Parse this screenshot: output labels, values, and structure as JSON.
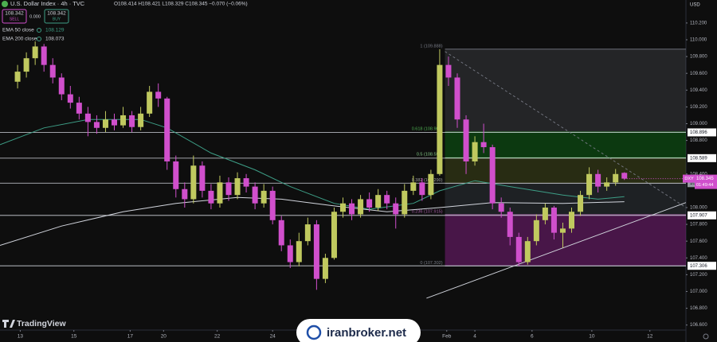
{
  "header": {
    "symbol_title": "U.S. Dollar Index · 4h · TVC",
    "ohlc": "O108.414 H108.421 L108.329 C108.345 −0.070 (−0.06%)",
    "sell_price": 108.342,
    "sell_label": "SELL",
    "spread": "0.000",
    "buy_price": 108.342,
    "buy_label": "BUY"
  },
  "indicators": [
    {
      "label": "EMA 50 close",
      "value": 108.129,
      "color": "#3d9e86"
    },
    {
      "label": "EMA 200 close",
      "value": 108.073,
      "color": "#d1d4dc"
    }
  ],
  "branding": {
    "logo": "TradingView",
    "watermark": "iranbroker.net"
  },
  "chart_data": {
    "type": "candlestick",
    "currency": "USD",
    "up_color": "#c0c95f",
    "down_color": "#d04fcc",
    "xlim": [
      -2,
      76
    ],
    "ylim": [
      106.54,
      110.474
    ],
    "xticks": [
      {
        "value": 0.3,
        "label": "13"
      },
      {
        "value": 6.4,
        "label": "15"
      },
      {
        "value": 12.8,
        "label": "17"
      },
      {
        "value": 16.6,
        "label": "20"
      },
      {
        "value": 22.7,
        "label": "22"
      },
      {
        "value": 29,
        "label": "24"
      },
      {
        "value": 48.8,
        "label": "Feb"
      },
      {
        "value": 52,
        "label": "4"
      },
      {
        "value": 58.5,
        "label": "6"
      },
      {
        "value": 65.3,
        "label": "10"
      },
      {
        "value": 71.9,
        "label": "12"
      }
    ],
    "yticks": [
      {
        "value": 110.2,
        "label": "110.200"
      },
      {
        "value": 110,
        "label": "110.000"
      },
      {
        "value": 109.8,
        "label": "109.800"
      },
      {
        "value": 109.6,
        "label": "109.600"
      },
      {
        "value": 109.4,
        "label": "109.400"
      },
      {
        "value": 109.2,
        "label": "109.200"
      },
      {
        "value": 109,
        "label": "109.000"
      },
      {
        "value": 108.8,
        "label": "108.800"
      },
      {
        "value": 108.4,
        "label": "108.400"
      },
      {
        "value": 108,
        "label": "108.000"
      },
      {
        "value": 107.8,
        "label": "107.800"
      },
      {
        "value": 107.6,
        "label": "107.600"
      },
      {
        "value": 107.4,
        "label": "107.400"
      },
      {
        "value": 107.2,
        "label": "107.200"
      },
      {
        "value": 107,
        "label": "107.000"
      },
      {
        "value": 106.8,
        "label": "106.800"
      },
      {
        "value": 106.6,
        "label": "106.600"
      }
    ],
    "ohlc": [
      [
        109.5,
        109.7,
        109.42,
        109.62
      ],
      [
        109.62,
        109.85,
        109.55,
        109.78
      ],
      [
        109.78,
        109.98,
        109.7,
        109.92
      ],
      [
        109.92,
        109.95,
        109.62,
        109.7
      ],
      [
        109.7,
        109.78,
        109.48,
        109.55
      ],
      [
        109.55,
        109.6,
        109.28,
        109.35
      ],
      [
        109.35,
        109.45,
        109.18,
        109.25
      ],
      [
        109.25,
        109.32,
        109.05,
        109.12
      ],
      [
        109.12,
        109.2,
        108.85,
        109.02
      ],
      [
        109.02,
        109.1,
        108.88,
        108.95
      ],
      [
        108.95,
        109.15,
        108.9,
        109.05
      ],
      [
        109.05,
        109.12,
        108.92,
        108.98
      ],
      [
        108.98,
        109.2,
        108.95,
        109.1
      ],
      [
        109.1,
        109.15,
        108.9,
        108.96
      ],
      [
        108.96,
        109.2,
        108.92,
        109.12
      ],
      [
        109.12,
        109.45,
        109.08,
        109.38
      ],
      [
        109.38,
        109.48,
        109.2,
        109.3
      ],
      [
        109.3,
        109.32,
        108.45,
        108.55
      ],
      [
        108.55,
        108.62,
        108.12,
        108.22
      ],
      [
        108.22,
        108.3,
        108.0,
        108.1
      ],
      [
        108.1,
        108.62,
        108.05,
        108.5
      ],
      [
        108.5,
        108.55,
        108.12,
        108.2
      ],
      [
        108.2,
        108.28,
        107.98,
        108.05
      ],
      [
        108.05,
        108.38,
        108.0,
        108.3
      ],
      [
        108.3,
        108.36,
        108.08,
        108.15
      ],
      [
        108.15,
        108.42,
        108.1,
        108.35
      ],
      [
        108.35,
        108.4,
        108.18,
        108.25
      ],
      [
        108.25,
        108.3,
        107.98,
        108.05
      ],
      [
        108.05,
        108.28,
        108.0,
        108.2
      ],
      [
        108.2,
        108.25,
        107.8,
        107.85
      ],
      [
        107.85,
        107.9,
        107.48,
        107.55
      ],
      [
        107.55,
        107.62,
        107.28,
        107.35
      ],
      [
        107.35,
        107.7,
        107.3,
        107.6
      ],
      [
        107.6,
        107.88,
        107.55,
        107.8
      ],
      [
        107.8,
        107.85,
        107.02,
        107.15
      ],
      [
        107.15,
        107.45,
        107.1,
        107.4
      ],
      [
        107.4,
        108.0,
        107.38,
        107.95
      ],
      [
        107.95,
        108.12,
        107.88,
        108.05
      ],
      [
        108.05,
        108.1,
        107.85,
        107.92
      ],
      [
        107.92,
        108.15,
        107.88,
        108.1
      ],
      [
        108.1,
        108.18,
        107.95,
        108.0
      ],
      [
        108.0,
        108.22,
        107.96,
        108.15
      ],
      [
        108.15,
        108.2,
        107.98,
        108.05
      ],
      [
        108.05,
        108.12,
        107.75,
        107.92
      ],
      [
        107.92,
        108.28,
        107.88,
        108.2
      ],
      [
        108.2,
        108.38,
        108.15,
        108.3
      ],
      [
        108.3,
        108.35,
        108.08,
        108.15
      ],
      [
        108.15,
        108.45,
        108.1,
        108.4
      ],
      [
        108.4,
        109.888,
        108.38,
        109.7
      ],
      [
        109.7,
        109.8,
        109.45,
        109.55
      ],
      [
        109.55,
        109.6,
        108.95,
        109.05
      ],
      [
        109.05,
        109.1,
        108.4,
        108.55
      ],
      [
        108.55,
        108.85,
        108.5,
        108.78
      ],
      [
        108.78,
        109.0,
        108.65,
        108.72
      ],
      [
        108.72,
        108.75,
        107.98,
        108.05
      ],
      [
        108.05,
        108.12,
        107.88,
        107.95
      ],
      [
        107.95,
        108.0,
        107.55,
        107.65
      ],
      [
        107.65,
        107.7,
        107.302,
        107.35
      ],
      [
        107.35,
        107.65,
        107.32,
        107.6
      ],
      [
        107.6,
        107.92,
        107.55,
        107.85
      ],
      [
        107.85,
        108.05,
        107.8,
        108.0
      ],
      [
        108.0,
        108.02,
        107.62,
        107.7
      ],
      [
        107.7,
        107.82,
        107.52,
        107.75
      ],
      [
        107.75,
        108.0,
        107.7,
        107.95
      ],
      [
        107.95,
        108.2,
        107.9,
        108.15
      ],
      [
        108.15,
        108.48,
        108.1,
        108.4
      ],
      [
        108.4,
        108.45,
        108.18,
        108.25
      ],
      [
        108.25,
        108.36,
        108.2,
        108.3
      ],
      [
        108.3,
        108.46,
        108.26,
        108.4
      ],
      [
        108.414,
        108.421,
        108.329,
        108.345
      ]
    ],
    "series": [
      {
        "name": "EMA 50",
        "color": "#3d9e86",
        "x": [
          -2,
          3,
          8,
          14,
          17,
          22,
          27,
          31,
          36,
          40,
          45,
          48,
          52,
          56,
          62,
          66,
          69
        ],
        "values": [
          108.75,
          108.95,
          109.05,
          109.05,
          108.95,
          108.65,
          108.45,
          108.25,
          108.05,
          107.98,
          108.05,
          108.2,
          108.32,
          108.25,
          108.15,
          108.1,
          108.13
        ]
      },
      {
        "name": "EMA 200",
        "color": "#d1d4dc",
        "x": [
          -2,
          5,
          12,
          18,
          25,
          30,
          36,
          42,
          48,
          54,
          62,
          69
        ],
        "values": [
          107.55,
          107.78,
          107.95,
          108.05,
          108.12,
          108.1,
          108.02,
          107.95,
          108.0,
          108.06,
          108.05,
          108.07
        ]
      }
    ],
    "hlines": [
      {
        "price": 108.896,
        "tag_color": "#ffffff"
      },
      {
        "price": 108.589,
        "tag_color": "#ffffff"
      },
      {
        "price": 108.291,
        "tag_color": "#9598a1"
      },
      {
        "price": 107.907,
        "tag_color": "#ffffff"
      },
      {
        "price": 107.306,
        "tag_color": "#ffffff"
      }
    ],
    "fib": {
      "x_start": 48.6,
      "levels": [
        {
          "label": "1 (109.888)",
          "price": 109.888,
          "color": "#787b86"
        },
        {
          "label": "0.618 (108.900)",
          "price": 108.9,
          "color": "#4caf50"
        },
        {
          "label": "0.5 (108.595)",
          "price": 108.595,
          "color": "#81c784"
        },
        {
          "label": "0.382 (108.290)",
          "price": 108.29,
          "color": "#9e9e9e"
        },
        {
          "label": "0.236 (107.915)",
          "price": 107.915,
          "color": "#a05aa0"
        },
        {
          "label": "0 (107.302)",
          "price": 107.302,
          "color": "#787b86"
        }
      ],
      "band_colors": [
        "rgba(120,123,134,0.22)",
        "rgba(10,110,20,0.45)",
        "rgba(90,100,30,0.35)",
        "rgba(70,80,90,0.3)",
        "rgba(130,30,130,0.5)"
      ]
    },
    "trendlines": [
      {
        "points": [
          [
            48.6,
            109.86
          ],
          [
            76,
            108.0
          ]
        ],
        "color": "#787b86",
        "dashed": true
      },
      {
        "points": [
          [
            46.5,
            106.92
          ],
          [
            76,
            108.06
          ]
        ],
        "color": "#d1d4dc",
        "dashed": false
      }
    ],
    "last_price": {
      "symbol": "DXY",
      "price": 108.345,
      "countdown": "01:49:44",
      "color": "#d04fcc"
    }
  }
}
